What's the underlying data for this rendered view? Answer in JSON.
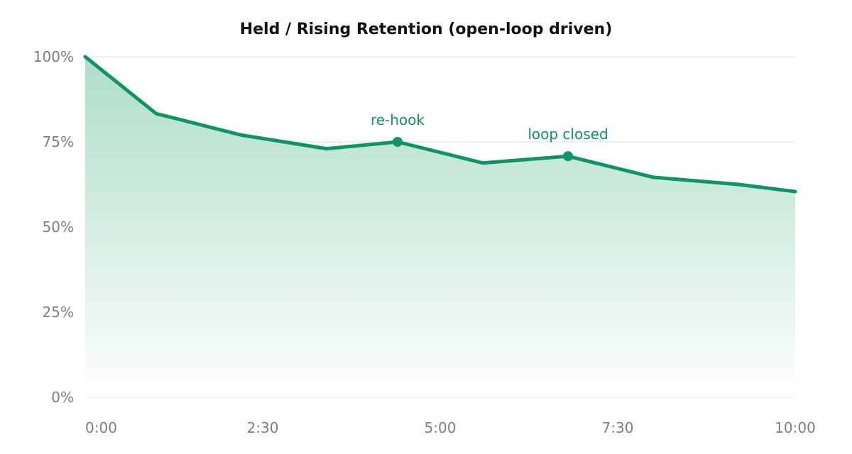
{
  "chart_data": {
    "type": "area",
    "title": "Held / Rising Retention (open-loop driven)",
    "xlabel": "",
    "ylabel": "",
    "x_range_seconds": [
      0,
      600
    ],
    "ylim": [
      0,
      100
    ],
    "x_ticks": [
      "0:00",
      "2:30",
      "5:00",
      "7:30",
      "10:00"
    ],
    "x_tick_values_seconds": [
      0,
      150,
      300,
      450,
      600
    ],
    "y_ticks": [
      "0%",
      "25%",
      "50%",
      "75%",
      "100%"
    ],
    "y_tick_values": [
      0,
      25,
      50,
      75,
      100
    ],
    "grid": true,
    "legend": "none",
    "series": [
      {
        "x_seconds": [
          0,
          60,
          132,
          204,
          264,
          336,
          408,
          480,
          552,
          600
        ],
        "values": [
          100,
          83.3,
          77,
          73,
          75,
          68.8,
          70.8,
          64.6,
          62.5,
          60.4
        ]
      }
    ],
    "annotations": [
      {
        "text": "re-hook",
        "x_seconds": 264,
        "value": 75
      },
      {
        "text": "loop closed",
        "x_seconds": 408,
        "value": 70.8
      }
    ],
    "colors": {
      "line": "#0f9466",
      "fill_top": "#a9dcc4",
      "grid": "#dfe3e6",
      "tick_text": "#7a7f85",
      "title": "#111111"
    }
  }
}
